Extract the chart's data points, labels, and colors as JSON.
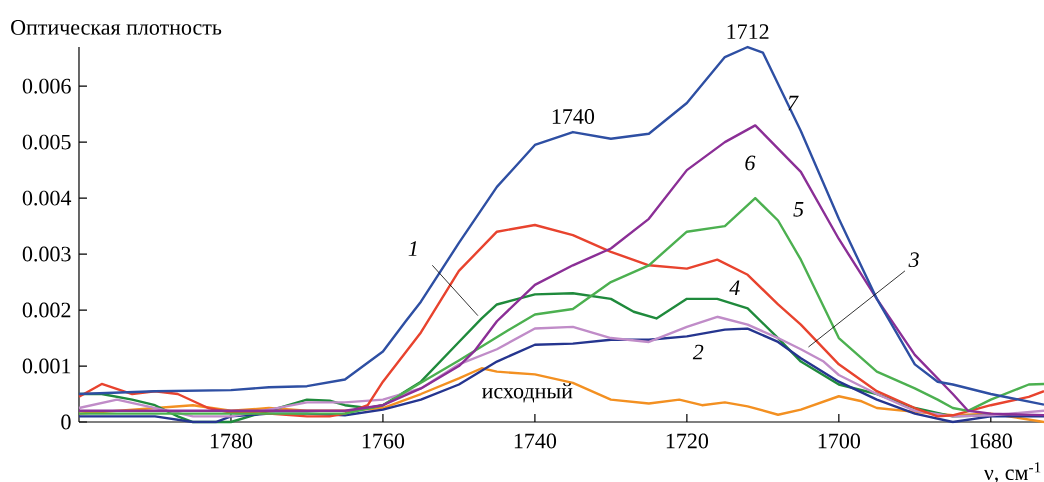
{
  "chart_data": {
    "type": "line",
    "xlabel": "ν, см$^{-1}$",
    "ylabel": "Оптическая плотность",
    "xlim": [
      1800,
      1673
    ],
    "xticks": [
      1780,
      1760,
      1740,
      1720,
      1700,
      1680
    ],
    "ylim": [
      0,
      0.0067
    ],
    "yticks": [
      0,
      0.001,
      0.002,
      0.003,
      0.004,
      0.005,
      0.006
    ],
    "annotations": [
      {
        "text": "1740",
        "x": 1735,
        "y": 0.00518
      },
      {
        "text": "1712",
        "x": 1712,
        "y": 0.0067
      }
    ],
    "series": [
      {
        "name": "исходный",
        "color": "#f39021",
        "x": [
          1800,
          1795,
          1790,
          1785,
          1780,
          1775,
          1770,
          1765,
          1760,
          1755,
          1750,
          1747,
          1745,
          1740,
          1735,
          1730,
          1725,
          1721,
          1718,
          1715,
          1712,
          1708,
          1705,
          1700,
          1697,
          1695,
          1690,
          1685,
          1680,
          1673
        ],
        "values": [
          0.00015,
          0.0002,
          0.00025,
          0.0003,
          0.0002,
          0.00025,
          0.0002,
          0.0002,
          0.00025,
          0.0005,
          0.00078,
          0.00096,
          0.0009,
          0.00085,
          0.0007,
          0.0004,
          0.00033,
          0.0004,
          0.0003,
          0.00035,
          0.00028,
          0.00013,
          0.00022,
          0.00046,
          0.00037,
          0.00025,
          0.00018,
          0.00012,
          0.00015,
          0.0
        ]
      },
      {
        "name": "1",
        "color": "#1f8a3c",
        "x": [
          1800,
          1797,
          1793,
          1790,
          1787,
          1785,
          1782,
          1780,
          1775,
          1770,
          1767,
          1765,
          1762,
          1760,
          1755,
          1750,
          1747,
          1745,
          1740,
          1735,
          1730,
          1727,
          1724,
          1720,
          1716,
          1712,
          1708,
          1705,
          1700,
          1695,
          1690,
          1685,
          1680
        ],
        "values": [
          0.0005,
          0.0005,
          0.0004,
          0.0003,
          0.0001,
          0.0,
          0.0,
          0.0,
          0.0002,
          0.0004,
          0.00038,
          0.0003,
          0.00025,
          0.0003,
          0.00072,
          0.00143,
          0.00185,
          0.0021,
          0.00228,
          0.0023,
          0.0022,
          0.00197,
          0.00185,
          0.0022,
          0.0022,
          0.00203,
          0.0015,
          0.00108,
          0.00067,
          0.0005,
          0.00025,
          0.0001,
          0.00012
        ]
      },
      {
        "name": "2",
        "color": "#25358f",
        "x": [
          1800,
          1795,
          1790,
          1785,
          1782,
          1780,
          1775,
          1770,
          1765,
          1760,
          1755,
          1750,
          1745,
          1740,
          1735,
          1730,
          1725,
          1720,
          1715,
          1712,
          1708,
          1705,
          1700,
          1695,
          1690,
          1685,
          1680,
          1673
        ],
        "values": [
          0.0001,
          0.0001,
          0.0001,
          0.0,
          0.0,
          0.0001,
          0.00015,
          0.00015,
          0.00012,
          0.00022,
          0.0004,
          0.00067,
          0.00108,
          0.00138,
          0.0014,
          0.00147,
          0.00147,
          0.00153,
          0.00165,
          0.00167,
          0.00143,
          0.00114,
          0.00072,
          0.0004,
          0.00015,
          0.0,
          0.0001,
          0.0001
        ]
      },
      {
        "name": "3",
        "color": "#c08cc8",
        "x": [
          1800,
          1795,
          1790,
          1785,
          1780,
          1775,
          1770,
          1765,
          1760,
          1755,
          1750,
          1745,
          1740,
          1735,
          1730,
          1725,
          1720,
          1716,
          1712,
          1708,
          1705,
          1702,
          1700,
          1695,
          1690,
          1685,
          1680,
          1673
        ],
        "values": [
          0.00025,
          0.0004,
          0.00025,
          0.0001,
          0.0001,
          0.00022,
          0.00035,
          0.00035,
          0.0004,
          0.0006,
          0.00103,
          0.0013,
          0.00167,
          0.0017,
          0.0015,
          0.00143,
          0.0017,
          0.00188,
          0.00174,
          0.0015,
          0.0013,
          0.00108,
          0.00084,
          0.0005,
          0.0002,
          0.0001,
          0.00012,
          0.0002
        ]
      },
      {
        "name": "4",
        "color": "#e8432e",
        "x": [
          1800,
          1797,
          1793,
          1790,
          1787,
          1783,
          1780,
          1775,
          1770,
          1767,
          1765,
          1762,
          1760,
          1755,
          1750,
          1745,
          1740,
          1735,
          1730,
          1725,
          1720,
          1716,
          1712,
          1708,
          1705,
          1700,
          1695,
          1690,
          1687,
          1685,
          1680,
          1675,
          1673
        ],
        "values": [
          0.00045,
          0.00068,
          0.0005,
          0.00055,
          0.0005,
          0.00025,
          0.00017,
          0.00015,
          0.0001,
          0.0001,
          0.00015,
          0.0003,
          0.00072,
          0.0016,
          0.0027,
          0.0034,
          0.00352,
          0.00334,
          0.00304,
          0.0028,
          0.00274,
          0.0029,
          0.00263,
          0.0021,
          0.00174,
          0.00103,
          0.00055,
          0.00025,
          0.0001,
          0.00012,
          0.0003,
          0.00045,
          0.00055
        ]
      },
      {
        "name": "5",
        "color": "#4cb050",
        "x": [
          1800,
          1790,
          1780,
          1770,
          1765,
          1760,
          1755,
          1750,
          1744,
          1740,
          1735,
          1730,
          1725,
          1720,
          1715,
          1711,
          1708,
          1705,
          1700,
          1695,
          1690,
          1687,
          1685,
          1683,
          1680,
          1675,
          1673
        ],
        "values": [
          0.00015,
          0.00015,
          0.00015,
          0.00015,
          0.00015,
          0.0003,
          0.0007,
          0.0011,
          0.0016,
          0.00192,
          0.00202,
          0.0025,
          0.0028,
          0.0034,
          0.0035,
          0.004,
          0.0036,
          0.0029,
          0.0015,
          0.0009,
          0.0006,
          0.0004,
          0.00025,
          0.0002,
          0.0004,
          0.00067,
          0.00068
        ]
      },
      {
        "name": "6",
        "color": "#8b2f96",
        "x": [
          1800,
          1790,
          1780,
          1770,
          1765,
          1760,
          1755,
          1750,
          1748,
          1745,
          1740,
          1735,
          1730,
          1725,
          1720,
          1715,
          1711,
          1705,
          1700,
          1695,
          1690,
          1685,
          1683,
          1680,
          1673
        ],
        "values": [
          0.0002,
          0.0002,
          0.0002,
          0.0002,
          0.0002,
          0.0003,
          0.0006,
          0.001,
          0.00126,
          0.0018,
          0.00245,
          0.0028,
          0.0031,
          0.00363,
          0.0045,
          0.005,
          0.0053,
          0.00447,
          0.00327,
          0.0022,
          0.0012,
          0.0005,
          0.0002,
          0.00015,
          0.00012
        ]
      },
      {
        "name": "7",
        "color": "#2e4fa3",
        "x": [
          1800,
          1790,
          1780,
          1775,
          1770,
          1765,
          1760,
          1757,
          1755,
          1750,
          1745,
          1740,
          1735,
          1730,
          1725,
          1720,
          1715,
          1712,
          1710,
          1705,
          1700,
          1695,
          1690,
          1687,
          1685,
          1680,
          1673
        ],
        "values": [
          0.0005,
          0.00055,
          0.00057,
          0.00062,
          0.00064,
          0.00076,
          0.00126,
          0.0018,
          0.00215,
          0.0032,
          0.0042,
          0.00495,
          0.00518,
          0.00506,
          0.00515,
          0.0057,
          0.00652,
          0.0067,
          0.0066,
          0.0052,
          0.00363,
          0.0022,
          0.00103,
          0.00072,
          0.00067,
          0.0005,
          0.00031
        ]
      }
    ]
  }
}
